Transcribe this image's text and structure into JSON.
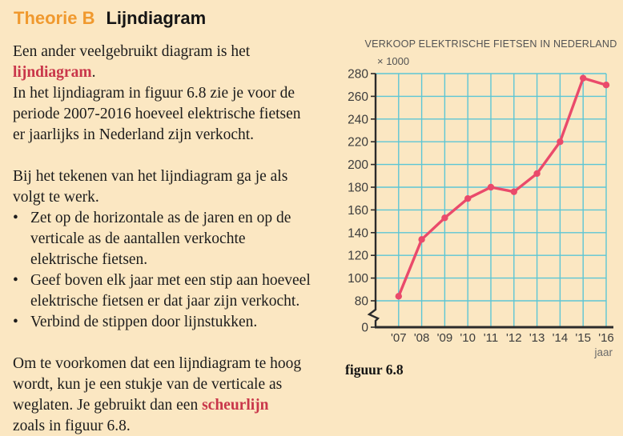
{
  "page": {
    "bg": "#fbe7c2",
    "accent_orange": "#f0992e",
    "accent_red": "#c9364a"
  },
  "header": {
    "kicker": "Theorie B",
    "title": "Lijndiagram"
  },
  "body": {
    "p1_lines": [
      [
        {
          "t": "Een ander veelgebruikt diagram is het"
        }
      ],
      [
        {
          "t": "lijndiagram",
          "accent": true
        },
        {
          "t": "."
        }
      ],
      [
        {
          "t": "In het lijndiagram in figuur 6.8 zie je voor de"
        }
      ],
      [
        {
          "t": "periode 2007-2016 hoeveel elektrische fietsen"
        }
      ],
      [
        {
          "t": "er jaarlijks in Nederland zijn verkocht."
        }
      ]
    ],
    "p2_lines": [
      [
        {
          "t": "Bij het tekenen van het lijndiagram ga je als"
        }
      ],
      [
        {
          "t": "volgt te werk."
        }
      ]
    ],
    "bullets": [
      {
        "lines": [
          [
            {
              "t": "Zet op de horizontale as de jaren en op de"
            }
          ],
          [
            {
              "t": "verticale as de aantallen verkochte"
            }
          ],
          [
            {
              "t": "elektrische fietsen."
            }
          ]
        ]
      },
      {
        "lines": [
          [
            {
              "t": "Geef boven elk jaar met een stip aan hoeveel"
            }
          ],
          [
            {
              "t": "elektrische fietsen er dat jaar zijn verkocht."
            }
          ]
        ]
      },
      {
        "lines": [
          [
            {
              "t": "Verbind de stippen door lijnstukken."
            }
          ]
        ]
      }
    ],
    "p3_lines": [
      [
        {
          "t": "Om te voorkomen dat een lijndiagram te hoog"
        }
      ],
      [
        {
          "t": "wordt, kun je een stukje van de verticale as"
        }
      ],
      [
        {
          "t": "weglaten. Je gebruikt dan een "
        },
        {
          "t": "scheurlijn",
          "accent": true
        }
      ],
      [
        {
          "t": "zoals in figuur 6.8."
        }
      ]
    ]
  },
  "chart_data": {
    "type": "line",
    "title": "VERKOOP ELEKTRISCHE FIETSEN IN NEDERLAND",
    "unit_label": "× 1000",
    "xlabel": "jaar",
    "categories": [
      "'07",
      "'08",
      "'09",
      "'10",
      "'11",
      "'12",
      "'13",
      "'14",
      "'15",
      "'16"
    ],
    "values": [
      84,
      134,
      153,
      170,
      180,
      176,
      192,
      220,
      276,
      270
    ],
    "y_ticks": [
      0,
      80,
      100,
      120,
      140,
      160,
      180,
      200,
      220,
      240,
      260,
      280
    ],
    "ylim": [
      80,
      280
    ],
    "axis_break": true,
    "grid": true,
    "line_color": "#ea4a6b",
    "grid_color": "#5cc6d5",
    "axis_color": "#2b2b2b",
    "label_color": "#3c3c3c",
    "title_color": "#535353",
    "caption": "figuur 6.8"
  }
}
